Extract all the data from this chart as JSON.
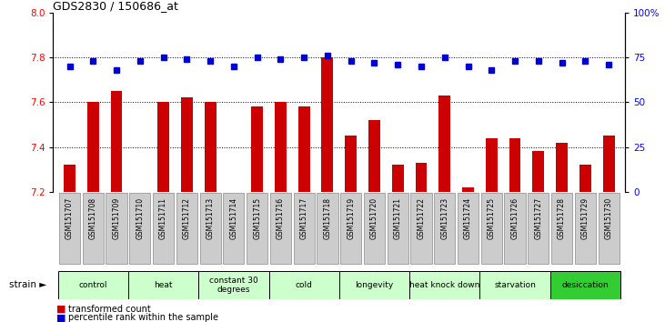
{
  "title": "GDS2830 / 150686_at",
  "samples": [
    "GSM151707",
    "GSM151708",
    "GSM151709",
    "GSM151710",
    "GSM151711",
    "GSM151712",
    "GSM151713",
    "GSM151714",
    "GSM151715",
    "GSM151716",
    "GSM151717",
    "GSM151718",
    "GSM151719",
    "GSM151720",
    "GSM151721",
    "GSM151722",
    "GSM151723",
    "GSM151724",
    "GSM151725",
    "GSM151726",
    "GSM151727",
    "GSM151728",
    "GSM151729",
    "GSM151730"
  ],
  "bar_values": [
    7.32,
    7.6,
    7.65,
    7.2,
    7.6,
    7.62,
    7.6,
    7.2,
    7.58,
    7.6,
    7.58,
    7.8,
    7.45,
    7.52,
    7.32,
    7.33,
    7.63,
    7.22,
    7.44,
    7.44,
    7.38,
    7.42,
    7.32,
    7.45
  ],
  "percentile_values": [
    70,
    73,
    68,
    73,
    75,
    74,
    73,
    70,
    75,
    74,
    75,
    76,
    73,
    72,
    71,
    70,
    75,
    70,
    68,
    73,
    73,
    72,
    73,
    71
  ],
  "groups": [
    {
      "label": "control",
      "start": 0,
      "end": 3,
      "color": "#ccffcc"
    },
    {
      "label": "heat",
      "start": 3,
      "end": 6,
      "color": "#ccffcc"
    },
    {
      "label": "constant 30\ndegrees",
      "start": 6,
      "end": 9,
      "color": "#ccffcc"
    },
    {
      "label": "cold",
      "start": 9,
      "end": 12,
      "color": "#ccffcc"
    },
    {
      "label": "longevity",
      "start": 12,
      "end": 15,
      "color": "#ccffcc"
    },
    {
      "label": "heat knock down",
      "start": 15,
      "end": 18,
      "color": "#ccffcc"
    },
    {
      "label": "starvation",
      "start": 18,
      "end": 21,
      "color": "#ccffcc"
    },
    {
      "label": "desiccation",
      "start": 21,
      "end": 24,
      "color": "#33cc33"
    }
  ],
  "ylim_left": [
    7.2,
    8.0
  ],
  "ylim_right": [
    0,
    100
  ],
  "yticks_left": [
    7.2,
    7.4,
    7.6,
    7.8,
    8.0
  ],
  "yticks_right": [
    0,
    25,
    50,
    75,
    100
  ],
  "ytick_right_labels": [
    "0",
    "25",
    "50",
    "75",
    "100%"
  ],
  "bar_color": "#cc0000",
  "percentile_color": "#0000cc",
  "bg_color": "#ffffff",
  "sample_box_color": "#cccccc",
  "dark_bar_color": "#333333"
}
